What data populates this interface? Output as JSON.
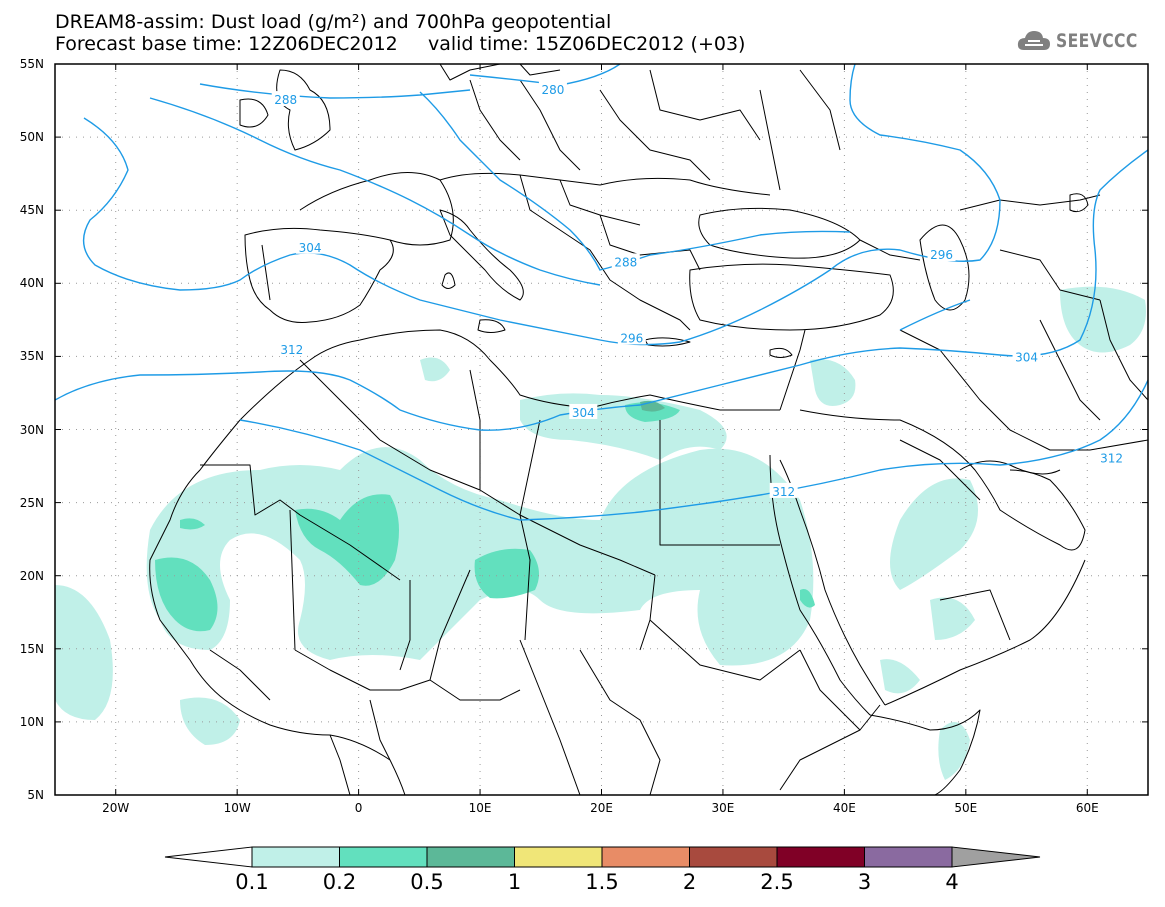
{
  "header": {
    "title_line1": "DREAM8-assim: Dust load (g/m²) and 700hPa geopotential",
    "title_line2": "Forecast base time: 12Z06DEC2012     valid time: 15Z06DEC2012 (+03)"
  },
  "logo": {
    "text": "SEEVCCC",
    "icon": "cloud-icon"
  },
  "map": {
    "lat_labels": [
      "55N",
      "50N",
      "45N",
      "40N",
      "35N",
      "30N",
      "25N",
      "20N",
      "15N",
      "10N",
      "5N"
    ],
    "lat_values": [
      55,
      50,
      45,
      40,
      35,
      30,
      25,
      20,
      15,
      10,
      5
    ],
    "lon_labels": [
      "20W",
      "10W",
      "0",
      "10E",
      "20E",
      "30E",
      "40E",
      "50E",
      "60E"
    ],
    "lon_values": [
      -20,
      -10,
      0,
      10,
      20,
      30,
      40,
      50,
      60
    ],
    "lon_range": [
      -25,
      65
    ],
    "lat_range": [
      5,
      55
    ],
    "contour_labels": [
      {
        "text": "288",
        "lon": -6,
        "lat": 52.6
      },
      {
        "text": "280",
        "lon": 16,
        "lat": 53.3
      },
      {
        "text": "288",
        "lon": 22,
        "lat": 41.5
      },
      {
        "text": "304",
        "lon": -4,
        "lat": 42.5
      },
      {
        "text": "296",
        "lon": 48,
        "lat": 42
      },
      {
        "text": "296",
        "lon": 22.5,
        "lat": 36.3
      },
      {
        "text": "312",
        "lon": -5.5,
        "lat": 35.5
      },
      {
        "text": "304",
        "lon": 18.5,
        "lat": 31.2
      },
      {
        "text": "304",
        "lon": 55,
        "lat": 35
      },
      {
        "text": "312",
        "lon": 35,
        "lat": 25.8
      },
      {
        "text": "312",
        "lon": 62,
        "lat": 28.1
      }
    ],
    "colors": {
      "contour": "#1e9be6",
      "border": "#000000",
      "grid": "#9a9a9a",
      "dust_01": "#c0f0e8",
      "dust_02": "#62e0be",
      "dust_05": "#5cb898"
    }
  },
  "colorbar": {
    "labels": [
      "0.1",
      "0.2",
      "0.5",
      "1",
      "1.5",
      "2",
      "2.5",
      "3",
      "4"
    ],
    "colors": [
      "#c0f0e8",
      "#62e0be",
      "#5cb898",
      "#f0e678",
      "#e88c66",
      "#a84a3e",
      "#800026",
      "#8a6aa0"
    ],
    "under_color": "#ffffff",
    "over_color": "#a0a0a0"
  }
}
